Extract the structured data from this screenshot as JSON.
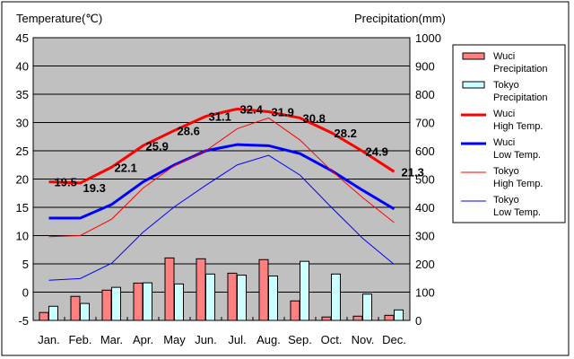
{
  "chart_data": {
    "type": "bar+line",
    "title_left": "Temperature(℃)",
    "title_right": "Precipitation(mm)",
    "categories": [
      "Jan.",
      "Feb.",
      "Mar.",
      "Apr.",
      "May",
      "Jun.",
      "Jul.",
      "Aug.",
      "Sep.",
      "Oct.",
      "Nov.",
      "Dec."
    ],
    "ylim_left": [
      -5,
      45
    ],
    "ylim_right": [
      0,
      1000
    ],
    "yticks_left": [
      "45",
      "40",
      "35",
      "30",
      "25",
      "20",
      "15",
      "10",
      "5",
      "0",
      "-5"
    ],
    "yticks_right": [
      "1000",
      "900",
      "800",
      "700",
      "600",
      "500",
      "400",
      "300",
      "200",
      "100",
      "0"
    ],
    "grid": true,
    "legend_position": "right",
    "bars": [
      {
        "name": "Wuci Precipitation",
        "legend": [
          "Wuci",
          "Precipitation"
        ],
        "color": "#ff8080",
        "values": [
          28,
          85,
          107,
          132,
          221,
          218,
          167,
          215,
          69,
          12,
          15,
          18
        ]
      },
      {
        "name": "Tokyo Precipitation",
        "legend": [
          "Tokyo",
          "Precipitation"
        ],
        "color": "#ccffff",
        "values": [
          50,
          60,
          117,
          133,
          129,
          164,
          160,
          157,
          209,
          164,
          93,
          37
        ]
      }
    ],
    "lines": [
      {
        "name": "Wuci High Temp.",
        "legend": [
          "Wuci",
          "High Temp."
        ],
        "color": "#ff0000",
        "width": 3,
        "values": [
          19.5,
          19.3,
          22.1,
          25.9,
          28.6,
          31.1,
          32.4,
          31.9,
          30.8,
          28.2,
          24.9,
          21.3
        ],
        "labels": [
          "19.5",
          "19.3",
          "22.1",
          "25.9",
          "28.6",
          "31.1",
          "32.4",
          "31.9",
          "30.8",
          "28.2",
          "24.9",
          "21.3"
        ]
      },
      {
        "name": "Wuci Low Temp.",
        "legend": [
          "Wuci",
          "Low Temp."
        ],
        "color": "#0000ff",
        "width": 3,
        "values": [
          13.1,
          13.1,
          15.5,
          19.5,
          22.5,
          25.0,
          26.1,
          25.9,
          24.5,
          21.5,
          18.0,
          14.7
        ]
      },
      {
        "name": "Tokyo High Temp.",
        "legend": [
          "Tokyo",
          "High Temp."
        ],
        "color": "#ff0000",
        "width": 1,
        "values": [
          9.8,
          10.0,
          12.9,
          18.4,
          22.4,
          25.0,
          28.9,
          30.8,
          26.9,
          21.5,
          16.7,
          12.3
        ]
      },
      {
        "name": "Tokyo Low Temp.",
        "legend": [
          "Tokyo",
          "Low Temp."
        ],
        "color": "#0000ff",
        "width": 1,
        "values": [
          2.1,
          2.4,
          5.1,
          10.6,
          15.1,
          18.9,
          22.5,
          24.2,
          20.7,
          15.0,
          9.5,
          4.9
        ]
      }
    ]
  }
}
